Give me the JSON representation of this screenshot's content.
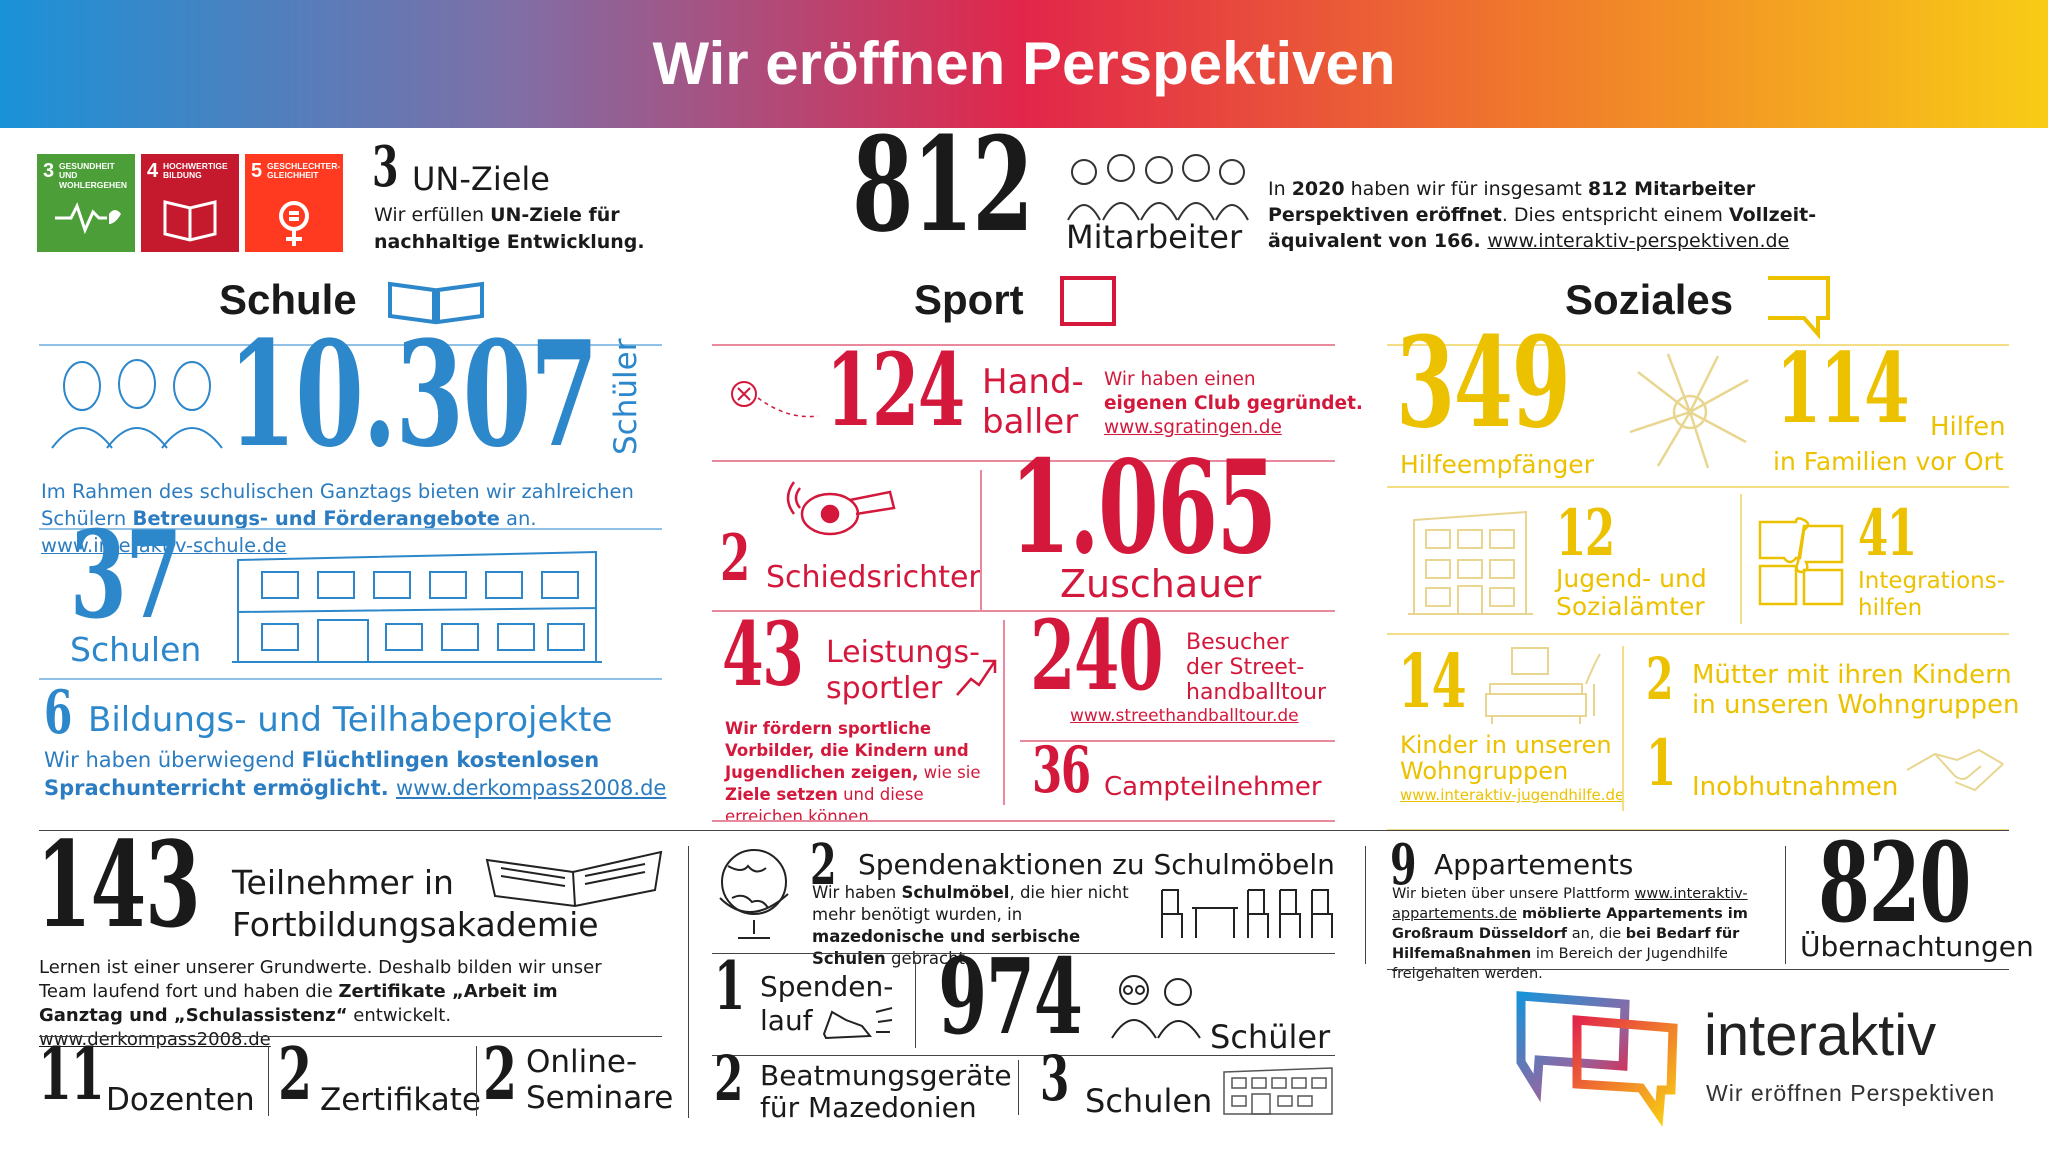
{
  "header": {
    "title": "Wir eröffnen Perspektiven"
  },
  "un_goals": {
    "icons": [
      {
        "number": "3",
        "label": "GESUNDHEIT UND WOHLERGEHEN"
      },
      {
        "number": "4",
        "label": "HOCHWERTIGE BILDUNG"
      },
      {
        "number": "5",
        "label": "GESCHLECHTER-GLEICHHEIT"
      }
    ],
    "count": "3",
    "title": "UN-Ziele",
    "text": [
      "Wir erfüllen ",
      "UN-Ziele für nachhaltige Entwicklung."
    ]
  },
  "employees": {
    "count": "812",
    "label": "Mitarbeiter",
    "text": [
      "In ",
      "2020",
      " haben wir für insgesamt ",
      "812 Mitarbeiter Perspektiven eröffnet",
      ". Dies entspricht einem ",
      "Vollzeit-äquivalent von 166. ",
      "www.interaktiv-perspektiven.de"
    ]
  },
  "sections": {
    "schule": "Schule",
    "sport": "Sport",
    "soziales": "Soziales"
  },
  "schule": {
    "students": {
      "count": "10.307",
      "label": "Schüler",
      "text": [
        "Im Rahmen des schulischen Ganztags bieten wir zahlreichen Schülern ",
        "Betreuungs- und Förderangebote",
        " an. ",
        "www.interaktiv-schule.de"
      ]
    },
    "schools": {
      "count": "37",
      "label": "Schulen"
    },
    "projects": {
      "count": "6",
      "label": "Bildungs- und Teilhabeprojekte",
      "text": [
        "Wir haben überwiegend ",
        "Flüchtlingen kostenlosen Sprachunterricht ermöglicht. ",
        "www.derkompass2008.de"
      ]
    }
  },
  "sport": {
    "handball": {
      "count": "124",
      "label": [
        "Hand-",
        "baller"
      ],
      "text": [
        "Wir haben einen",
        "eigenen Club gegründet.",
        "www.sgratingen.de"
      ]
    },
    "referees": {
      "count": "2",
      "label": "Schiedsrichter"
    },
    "spectators": {
      "count": "1.065",
      "label": "Zuschauer"
    },
    "athletes": {
      "count": "43",
      "label": [
        "Leistungs-",
        "sportler"
      ],
      "text": [
        "Wir fördern sportliche Vorbilder, die Kindern und Jugendlichen zeigen,",
        " wie sie ",
        "Ziele setzen",
        " und diese erreichen können."
      ]
    },
    "streethandball": {
      "count": "240",
      "label": [
        "Besucher",
        "der Street-",
        "handballtour"
      ],
      "link": "www.streethandballtour.de"
    },
    "camp": {
      "count": "36",
      "label": "Campteilnehmer"
    }
  },
  "soziales": {
    "recipients": {
      "count": "349",
      "label": "Hilfeempfänger"
    },
    "families": {
      "count": "114",
      "label": "Hilfen",
      "sublabel": "in Familien vor Ort"
    },
    "offices": {
      "count": "12",
      "label": [
        "Jugend- und",
        "Sozialämter"
      ]
    },
    "integration": {
      "count": "41",
      "label": [
        "Integrations-",
        "hilfen"
      ]
    },
    "children": {
      "count": "14",
      "label": [
        "Kinder in unseren",
        "Wohngruppen"
      ],
      "link": "www.interaktiv-jugendhilfe.de"
    },
    "mothers": {
      "count": "2",
      "label": [
        "Mütter mit ihren Kindern",
        "in unseren Wohngruppen"
      ]
    },
    "custody": {
      "count": "1",
      "label": "Inobhutnahmen"
    }
  },
  "training": {
    "count": "143",
    "label": [
      "Teilnehmer in",
      "Fortbildungsakademie"
    ],
    "text": [
      "Lernen ist einer unserer Grundwerte. Deshalb bilden wir unser Team laufend fort und haben die ",
      "Zertifikate „Arbeit im Ganztag und „Schulassistenz“",
      " entwickelt. ",
      "www.derkompass2008.de"
    ],
    "stats": [
      {
        "count": "11",
        "label": "Dozenten"
      },
      {
        "count": "2",
        "label": "Zertifikate"
      },
      {
        "count": "2",
        "label": "Online-Seminare"
      }
    ]
  },
  "donations": {
    "furniture": {
      "count": "2",
      "title": "Spendenaktionen zu Schulmöbeln",
      "text": [
        "Wir haben ",
        "Schulmöbel",
        ", die hier nicht mehr benötigt wurden, in ",
        "mazedonische und serbische Schulen",
        " gebracht."
      ]
    },
    "run": {
      "count": "1",
      "label": [
        "Spenden-",
        "lauf"
      ]
    },
    "pupils": {
      "count": "974",
      "label": "Schüler"
    },
    "ventilators": {
      "count": "2",
      "label": [
        "Beatmungsgeräte",
        "für Mazedonien"
      ]
    },
    "schools": {
      "count": "3",
      "label": "Schulen"
    }
  },
  "apartments": {
    "count": "9",
    "title": "Appartements",
    "text": [
      "Wir bieten über unsere Plattform ",
      "www.interaktiv-appartements.de",
      " möblierte Appartements im Großraum Düsseldorf",
      " an, die ",
      "bei Bedarf für Hilfemaßnahmen",
      " im Bereich der Jugendhilfe freigehalten werden."
    ],
    "nights": {
      "count": "820",
      "label": "Übernachtungen"
    }
  },
  "logo": {
    "name": "interaktiv",
    "slogan": "Wir eröffnen Perspektiven"
  }
}
